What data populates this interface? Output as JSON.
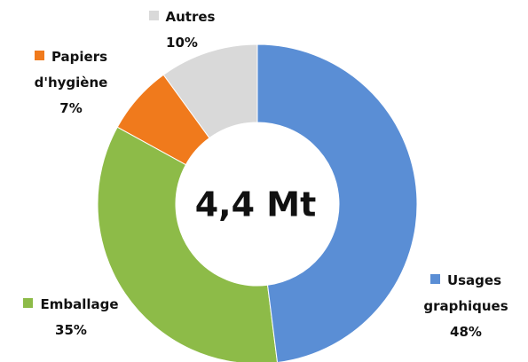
{
  "chart_data": {
    "type": "donut",
    "center_label": "4,4 Mt",
    "categories": [
      "Usages graphiques",
      "Emballage",
      "Papiers d'hygiène",
      "Autres"
    ],
    "values": [
      48,
      35,
      7,
      10
    ],
    "value_labels": [
      "48%",
      "35%",
      "7%",
      "10%"
    ],
    "colors": [
      "#5a8ed5",
      "#8dbb48",
      "#f07a1c",
      "#d9d9d9"
    ]
  }
}
